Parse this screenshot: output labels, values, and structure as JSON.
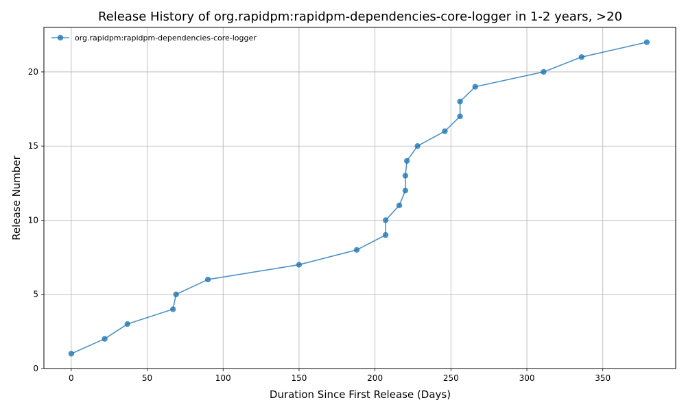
{
  "chart_data": {
    "type": "line",
    "title": "Release History of org.rapidpm:rapidpm-dependencies-core-logger in 1-2 years, >20",
    "xlabel": "Duration Since First Release (Days)",
    "ylabel": "Release Number",
    "xlim": [
      -18,
      398
    ],
    "ylim": [
      0,
      23
    ],
    "x_ticks": [
      0,
      50,
      100,
      150,
      200,
      250,
      300,
      350
    ],
    "y_ticks": [
      0,
      5,
      10,
      15,
      20
    ],
    "grid": true,
    "legend_position": "top-left",
    "series": [
      {
        "name": "org.rapidpm:rapidpm-dependencies-core-logger",
        "color": "#1f77b4",
        "x": [
          0,
          22,
          37,
          67,
          69,
          90,
          150,
          188,
          207,
          207,
          216,
          220,
          220,
          221,
          228,
          246,
          256,
          256,
          266,
          311,
          336,
          379
        ],
        "y": [
          1,
          2,
          3,
          4,
          5,
          6,
          7,
          8,
          9,
          10,
          11,
          12,
          13,
          14,
          15,
          16,
          17,
          18,
          19,
          20,
          21,
          22
        ]
      }
    ]
  }
}
